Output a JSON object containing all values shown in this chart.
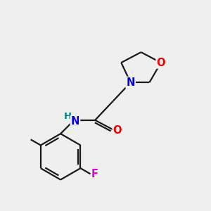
{
  "background_color": "#efefef",
  "bond_color": "#1a1a1a",
  "bond_width": 1.6,
  "atom_colors": {
    "N": "#0000ee",
    "O": "#ee0000",
    "F": "#dd00dd",
    "H": "#008080",
    "C": "#1a1a1a"
  },
  "font_size": 10.5,
  "fig_size": [
    3.0,
    3.0
  ],
  "dpi": 100
}
